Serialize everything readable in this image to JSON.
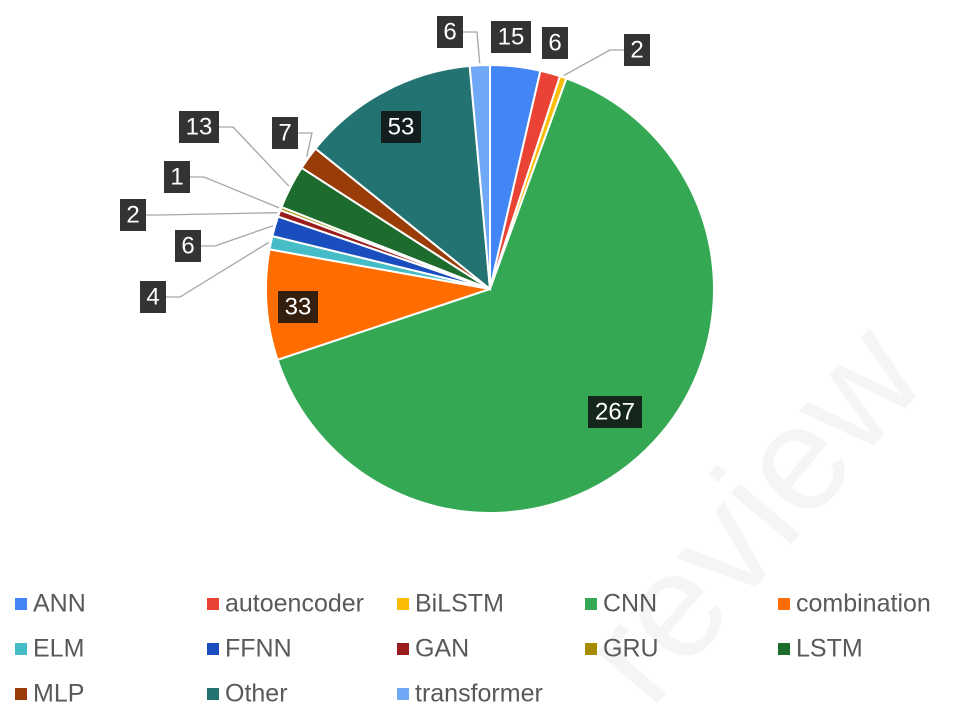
{
  "chart_data": {
    "type": "pie",
    "categories": [
      "ANN",
      "autoencoder",
      "BiLSTM",
      "CNN",
      "combination",
      "ELM",
      "FFNN",
      "GAN",
      "GRU",
      "LSTM",
      "MLP",
      "Other",
      "transformer"
    ],
    "values": [
      15,
      6,
      2,
      267,
      33,
      4,
      6,
      2,
      1,
      13,
      7,
      53,
      6
    ],
    "colors": [
      "#4285f4",
      "#ea4335",
      "#fbbc04",
      "#34a853",
      "#ff6d01",
      "#46bdc6",
      "#1a4dbd",
      "#9b1c1c",
      "#a68a00",
      "#1e6b2e",
      "#993c08",
      "#237373",
      "#6fa8f5"
    ],
    "legend": "bottom",
    "watermark": "review"
  }
}
